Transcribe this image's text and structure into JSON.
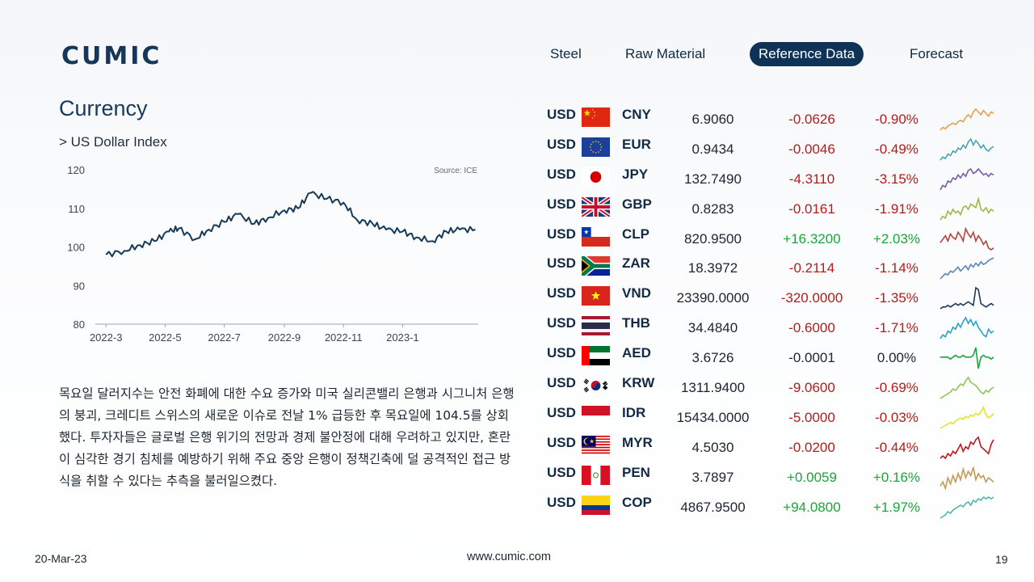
{
  "logo": {
    "text": "CUMIC"
  },
  "nav": [
    {
      "label": "Steel",
      "active": false
    },
    {
      "label": "Raw Material",
      "active": false
    },
    {
      "label": "Reference Data",
      "active": true
    },
    {
      "label": "Forecast",
      "active": false
    }
  ],
  "section": {
    "title": "Currency",
    "subtitle": "> US Dollar Index"
  },
  "chart_data": {
    "type": "line",
    "title": "",
    "source": "Source: ICE",
    "ylim": [
      80,
      120
    ],
    "yticks": [
      "120",
      "110",
      "100",
      "90",
      "80"
    ],
    "xticks": [
      "2022-3",
      "2022-5",
      "2022-7",
      "2022-9",
      "2022-11",
      "2023-1"
    ],
    "series": [
      {
        "color": "#173a59",
        "x": [
          "2022-03-01",
          "2022-03-20",
          "2022-04-05",
          "2022-04-20",
          "2022-05-05",
          "2022-05-15",
          "2022-06-01",
          "2022-06-15",
          "2022-07-01",
          "2022-07-15",
          "2022-08-01",
          "2022-08-15",
          "2022-09-01",
          "2022-09-15",
          "2022-09-28",
          "2022-10-15",
          "2022-11-01",
          "2022-11-15",
          "2022-12-01",
          "2022-12-15",
          "2023-01-01",
          "2023-01-15",
          "2023-02-01",
          "2023-02-15",
          "2023-03-01",
          "2023-03-17"
        ],
        "values": [
          98,
          99,
          100.5,
          101.5,
          104,
          104.8,
          102,
          104.5,
          106.5,
          108.5,
          106,
          107.5,
          109.5,
          110,
          114,
          112.5,
          111.5,
          107,
          106,
          104.5,
          104,
          102.5,
          101.5,
          104,
          104.5,
          104.5
        ]
      }
    ]
  },
  "commentary": "목요일 달러지수는 안전 화폐에 대한 수요 증가와 미국 실리콘밸리 은행과 시그니처 은행의 붕괴, 크레디트 스위스의 새로운 이슈로 전날 1% 급등한 후 목요일에 104.5를 상회했다. 투자자들은 글로벌 은행 위기의 전망과 경제 불안정에 대해 우려하고 있지만, 혼란이 심각한 경기 침체를 예방하기 위해 주요 중앙 은행이 정책긴축에 덜 공격적인 접근 방식을 취할 수 있다는 추측을 불러일으켰다.",
  "currencies": [
    {
      "base": "USD",
      "code": "CNY",
      "flag": "cn-flag-icon",
      "rate": "6.9060",
      "change": "-0.0626",
      "pct": "-0.90%",
      "dir": "neg",
      "spark_color": "#e8a04f",
      "spark": [
        3,
        5,
        4,
        6,
        7,
        8,
        7,
        9,
        10,
        9,
        12,
        14,
        12,
        16,
        18,
        16,
        14,
        17,
        15,
        13,
        16,
        15
      ]
    },
    {
      "base": "USD",
      "code": "EUR",
      "flag": "eu-flag-icon",
      "rate": "0.9434",
      "change": "-0.0046",
      "pct": "-0.49%",
      "dir": "neg",
      "spark_color": "#4aa3b5",
      "spark": [
        2,
        4,
        3,
        6,
        5,
        8,
        7,
        10,
        9,
        12,
        10,
        14,
        16,
        12,
        15,
        13,
        10,
        12,
        9,
        8,
        10,
        11
      ]
    },
    {
      "base": "USD",
      "code": "JPY",
      "flag": "jp-flag-icon",
      "rate": "132.7490",
      "change": "-4.3110",
      "pct": "-3.15%",
      "dir": "neg",
      "spark_color": "#7b5aa6",
      "spark": [
        2,
        5,
        4,
        8,
        7,
        10,
        9,
        12,
        10,
        13,
        11,
        15,
        16,
        13,
        14,
        16,
        14,
        12,
        13,
        11,
        13,
        12
      ]
    },
    {
      "base": "USD",
      "code": "GBP",
      "flag": "gb-flag-icon",
      "rate": "0.8283",
      "change": "-0.0161",
      "pct": "-1.91%",
      "dir": "neg",
      "spark_color": "#9cb845",
      "spark": [
        4,
        6,
        5,
        9,
        7,
        10,
        8,
        9,
        7,
        11,
        12,
        10,
        13,
        12,
        11,
        16,
        10,
        9,
        11,
        8,
        10,
        9
      ]
    },
    {
      "base": "USD",
      "code": "CLP",
      "flag": "cl-flag-icon",
      "rate": "820.9500",
      "change": "+16.3200",
      "pct": "+2.03%",
      "dir": "pos",
      "spark_color": "#b5453c",
      "spark": [
        8,
        10,
        12,
        9,
        13,
        11,
        10,
        14,
        12,
        9,
        16,
        13,
        11,
        14,
        9,
        12,
        10,
        7,
        9,
        5,
        4,
        5
      ]
    },
    {
      "base": "USD",
      "code": "ZAR",
      "flag": "za-flag-icon",
      "rate": "18.3972",
      "change": "-0.2114",
      "pct": "-1.14%",
      "dir": "neg",
      "spark_color": "#5c84b8",
      "spark": [
        2,
        4,
        6,
        5,
        8,
        7,
        9,
        11,
        8,
        10,
        12,
        9,
        13,
        11,
        14,
        12,
        15,
        13,
        14,
        16,
        17,
        18
      ]
    },
    {
      "base": "USD",
      "code": "VND",
      "flag": "vn-flag-icon",
      "rate": "23390.0000",
      "change": "-320.0000",
      "pct": "-1.35%",
      "dir": "neg",
      "spark_color": "#1d3a5c",
      "spark": [
        4,
        5,
        5,
        6,
        5,
        6,
        7,
        6,
        7,
        6,
        7,
        8,
        7,
        6,
        16,
        15,
        7,
        6,
        5,
        6,
        7,
        6
      ]
    },
    {
      "base": "USD",
      "code": "THB",
      "flag": "th-flag-icon",
      "rate": "34.4840",
      "change": "-0.6000",
      "pct": "-1.71%",
      "dir": "neg",
      "spark_color": "#2aa3c9",
      "spark": [
        3,
        5,
        4,
        7,
        6,
        9,
        8,
        11,
        9,
        12,
        14,
        11,
        13,
        10,
        12,
        9,
        7,
        5,
        4,
        8,
        6,
        7
      ]
    },
    {
      "base": "USD",
      "code": "AED",
      "flag": "ae-flag-icon",
      "rate": "3.6726",
      "change": "-0.0001",
      "pct": "0.00%",
      "dir": "neu",
      "spark_color": "#1ea53b",
      "spark": [
        9,
        9,
        9,
        9,
        8,
        9,
        10,
        9,
        9,
        10,
        9,
        9,
        9,
        10,
        14,
        3,
        9,
        10,
        9,
        9,
        8,
        9
      ]
    },
    {
      "base": "USD",
      "code": "KRW",
      "flag": "kr-flag-icon",
      "rate": "1311.9400",
      "change": "-9.0600",
      "pct": "-0.69%",
      "dir": "neg",
      "spark_color": "#8fc456",
      "spark": [
        3,
        4,
        5,
        6,
        7,
        9,
        8,
        10,
        12,
        11,
        14,
        16,
        13,
        12,
        11,
        9,
        7,
        6,
        8,
        7,
        9,
        10
      ]
    },
    {
      "base": "USD",
      "code": "IDR",
      "flag": "id-flag-icon",
      "rate": "15434.0000",
      "change": "-5.0000",
      "pct": "-0.03%",
      "dir": "neg",
      "spark_color": "#e6e32a",
      "spark": [
        2,
        3,
        4,
        5,
        6,
        5,
        7,
        8,
        9,
        8,
        10,
        9,
        11,
        10,
        12,
        11,
        13,
        16,
        11,
        9,
        10,
        12
      ]
    },
    {
      "base": "USD",
      "code": "MYR",
      "flag": "my-flag-icon",
      "rate": "4.5030",
      "change": "-0.0200",
      "pct": "-0.44%",
      "dir": "neg",
      "spark_color": "#c0181c",
      "spark": [
        3,
        4,
        3,
        5,
        4,
        6,
        5,
        7,
        9,
        6,
        8,
        7,
        10,
        9,
        11,
        12,
        8,
        7,
        6,
        5,
        9,
        11
      ]
    },
    {
      "base": "USD",
      "code": "PEN",
      "flag": "pe-flag-icon",
      "rate": "3.7897",
      "change": "+0.0059",
      "pct": "+0.16%",
      "dir": "pos",
      "spark_color": "#c39a55",
      "spark": [
        4,
        6,
        3,
        8,
        5,
        9,
        6,
        10,
        7,
        12,
        8,
        11,
        9,
        13,
        7,
        10,
        8,
        9,
        6,
        8,
        7,
        6
      ]
    },
    {
      "base": "USD",
      "code": "COP",
      "flag": "co-flag-icon",
      "rate": "4867.9500",
      "change": "+94.0800",
      "pct": "+1.97%",
      "dir": "pos",
      "spark_color": "#4fb4aa",
      "spark": [
        2,
        3,
        4,
        6,
        5,
        7,
        8,
        9,
        10,
        9,
        11,
        12,
        10,
        13,
        12,
        14,
        13,
        15,
        14,
        15,
        14,
        15
      ]
    }
  ],
  "footer": {
    "date": "20-Mar-23",
    "website": "www.cumic.com",
    "page": "19"
  }
}
